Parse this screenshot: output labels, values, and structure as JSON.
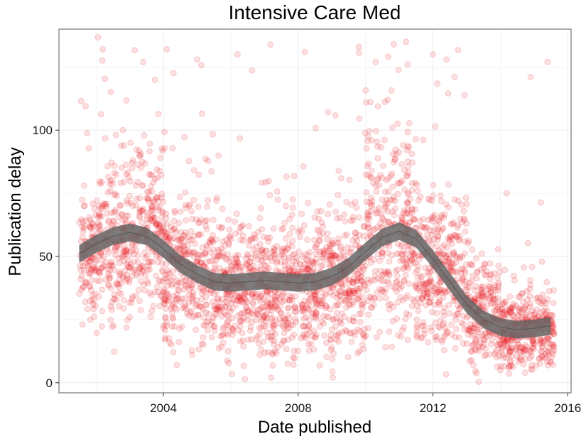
{
  "chart_data": {
    "type": "scatter",
    "title": "Intensive Care Med",
    "xlabel": "Date published",
    "ylabel": "Publication delay",
    "xlim": [
      2000.9,
      2016.1
    ],
    "ylim": [
      -4,
      140
    ],
    "x_ticks": [
      2004,
      2008,
      2012,
      2016
    ],
    "y_ticks": [
      0,
      50,
      100
    ],
    "grid": true,
    "legend": "none",
    "point_color": "#e8000b",
    "point_opacity": 0.12,
    "smooth_color": "#666666",
    "point_density": [
      {
        "x_range": [
          2001.5,
          2002.0
        ],
        "y_center": 50,
        "y_spread": 14
      },
      {
        "x_range": [
          2002.0,
          2003.0
        ],
        "y_center": 55,
        "y_spread": 18
      },
      {
        "x_range": [
          2003.0,
          2004.0
        ],
        "y_center": 58,
        "y_spread": 20
      },
      {
        "x_range": [
          2004.0,
          2005.5
        ],
        "y_center": 44,
        "y_spread": 17
      },
      {
        "x_range": [
          2005.5,
          2007.0
        ],
        "y_center": 38,
        "y_spread": 15
      },
      {
        "x_range": [
          2007.0,
          2008.5
        ],
        "y_center": 36,
        "y_spread": 16
      },
      {
        "x_range": [
          2008.5,
          2010.0
        ],
        "y_center": 40,
        "y_spread": 18
      },
      {
        "x_range": [
          2010.0,
          2011.5
        ],
        "y_center": 58,
        "y_spread": 24
      },
      {
        "x_range": [
          2011.5,
          2013.0
        ],
        "y_center": 45,
        "y_spread": 20
      },
      {
        "x_range": [
          2013.0,
          2014.0
        ],
        "y_center": 28,
        "y_spread": 12
      },
      {
        "x_range": [
          2014.0,
          2015.6
        ],
        "y_center": 20,
        "y_spread": 9
      }
    ],
    "outliers": [
      {
        "x": 2002.2,
        "y": 132
      },
      {
        "x": 2003.4,
        "y": 127
      },
      {
        "x": 2004.1,
        "y": 132
      },
      {
        "x": 2005.0,
        "y": 128
      },
      {
        "x": 2006.2,
        "y": 130
      },
      {
        "x": 2008.2,
        "y": 131
      },
      {
        "x": 2009.8,
        "y": 133
      },
      {
        "x": 2011.2,
        "y": 135
      },
      {
        "x": 2012.0,
        "y": 130
      },
      {
        "x": 2012.4,
        "y": 128
      },
      {
        "x": 2014.9,
        "y": 121
      },
      {
        "x": 2015.4,
        "y": 127
      },
      {
        "x": 2007.2,
        "y": 2
      },
      {
        "x": 2004.4,
        "y": 7
      },
      {
        "x": 2013.2,
        "y": 7
      },
      {
        "x": 2014.0,
        "y": 5
      },
      {
        "x": 2015.5,
        "y": 8
      },
      {
        "x": 2001.6,
        "y": 23
      }
    ],
    "smooth_fit": {
      "x": [
        2001.5,
        2002.0,
        2002.5,
        2003.0,
        2003.5,
        2004.0,
        2004.5,
        2005.0,
        2005.5,
        2006.0,
        2006.5,
        2007.0,
        2007.5,
        2008.0,
        2008.5,
        2009.0,
        2009.5,
        2010.0,
        2010.5,
        2011.0,
        2011.5,
        2012.0,
        2012.5,
        2013.0,
        2013.5,
        2014.0,
        2014.5,
        2015.0,
        2015.5
      ],
      "y": [
        51,
        55,
        58,
        59.5,
        58,
        53,
        47,
        43,
        40,
        39.5,
        40,
        40.5,
        40,
        39.5,
        40,
        42,
        46,
        52,
        57.5,
        60,
        57,
        49,
        40,
        31,
        25,
        22,
        21,
        21.5,
        22.5
      ],
      "band_width": 3.5
    }
  }
}
